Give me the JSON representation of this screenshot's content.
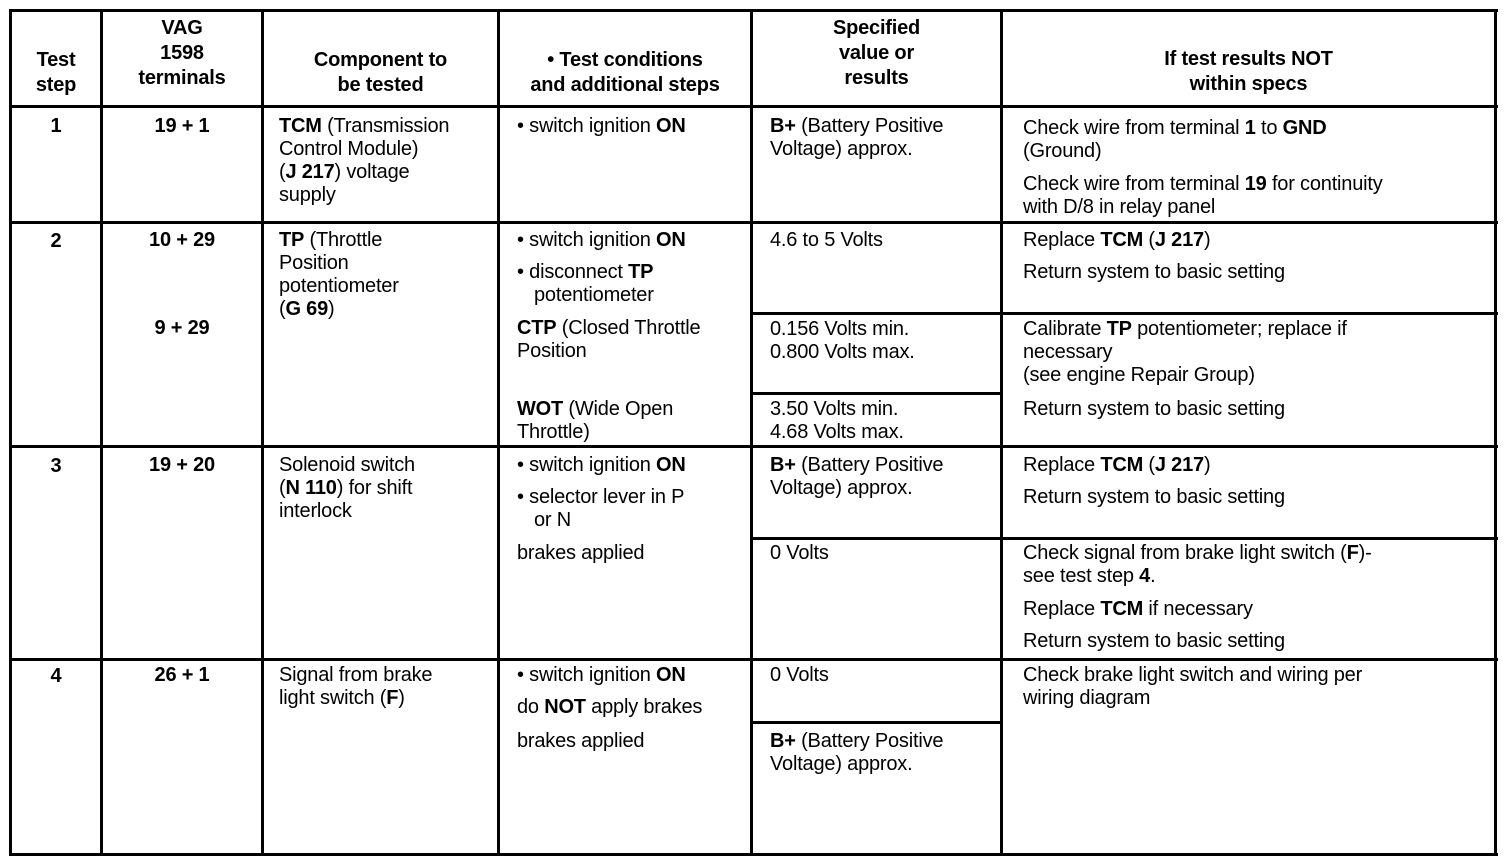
{
  "header": {
    "step": [
      "Test",
      "step"
    ],
    "terminals": [
      "VAG",
      "1598",
      "terminals"
    ],
    "component": [
      "Component to",
      "be tested"
    ],
    "conditions": [
      "• Test conditions",
      "and additional steps"
    ],
    "specified": [
      "Specified",
      "value or",
      "results"
    ],
    "if_not": [
      "If test results NOT",
      "within specs"
    ]
  },
  "rows": [
    {
      "step": [
        "*1*"
      ],
      "terminals": [
        "*19 + 1*"
      ],
      "component": [
        "*TCM* (Transmission",
        "Control Module)",
        "(*J 217*) voltage",
        "supply"
      ],
      "conditions": [
        [
          "• switch ignition *ON*"
        ]
      ],
      "specified": [
        [
          "*B+* (Battery Positive",
          "Voltage) approx."
        ]
      ],
      "if_not": [
        [
          "Check wire from terminal *1* to *GND*",
          "(Ground)"
        ],
        [
          "Check wire from terminal *19* for continuity",
          "with D/8 in relay panel"
        ]
      ]
    },
    {
      "step": [
        "*2*"
      ],
      "terminals": [
        "*10 + 29*"
      ],
      "terminals_2": [
        "*9 + 29*"
      ],
      "component": [
        "*TP* (Throttle",
        "Position",
        "potentiometer",
        "(*G 69*)"
      ],
      "conditions": [
        [
          "• switch ignition *ON*"
        ],
        [
          "• disconnect *TP*",
          ">potentiometer"
        ],
        [
          "*CTP* (Closed Throttle",
          "Position"
        ],
        [
          "*WOT* (Wide Open",
          "Throttle)"
        ]
      ],
      "specified": [
        [
          "4.6 to 5 Volts"
        ],
        [
          "0.156 Volts min.",
          "0.800 Volts max."
        ],
        [
          "3.50 Volts min.",
          "4.68 Volts max."
        ]
      ],
      "if_not": [
        [
          "Replace *TCM* (*J 217*)"
        ],
        [
          "Return system to basic setting"
        ],
        [
          "Calibrate *TP* potentiometer; replace if",
          "necessary",
          "(see engine Repair Group)"
        ],
        [
          "Return system to basic setting"
        ]
      ]
    },
    {
      "step": [
        "*3*"
      ],
      "terminals": [
        "*19 + 20*"
      ],
      "component": [
        "Solenoid switch",
        "(*N 110*) for shift",
        "interlock"
      ],
      "conditions": [
        [
          "• switch ignition *ON*"
        ],
        [
          "• selector lever in P",
          ">or N"
        ],
        [
          "brakes applied"
        ]
      ],
      "specified": [
        [
          "*B+* (Battery Positive",
          "Voltage) approx."
        ],
        [
          "0 Volts"
        ]
      ],
      "if_not": [
        [
          "Replace *TCM* (*J 217*)"
        ],
        [
          "Return system to basic setting"
        ],
        [
          "Check signal from brake light switch (*F*)-",
          "see test step *4*."
        ],
        [
          "Replace *TCM* if necessary"
        ],
        [
          "Return system to basic setting"
        ]
      ]
    },
    {
      "step": [
        "*4*"
      ],
      "terminals": [
        "*26 + 1*"
      ],
      "component": [
        "Signal from brake",
        "light switch (*F*)"
      ],
      "conditions": [
        [
          "• switch ignition *ON*"
        ],
        [
          "do *NOT* apply brakes"
        ],
        [
          "brakes applied"
        ]
      ],
      "specified": [
        [
          "0 Volts"
        ],
        [
          "*B+* (Battery Positive",
          "Voltage) approx."
        ]
      ],
      "if_not": [
        [
          "Check brake light switch and wiring per",
          "wiring diagram"
        ]
      ]
    }
  ]
}
